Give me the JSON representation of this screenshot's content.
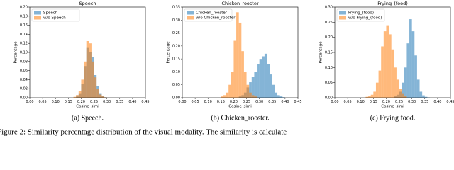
{
  "chart_data": [
    {
      "type": "histogram",
      "title": "Speech",
      "xlabel": "Cosine_simi",
      "ylabel": "Percentage",
      "caption": "(a) Speech.",
      "legend": "upper left",
      "bins": [
        0.17,
        0.18,
        0.19,
        0.2,
        0.21,
        0.22,
        0.23,
        0.24,
        0.25,
        0.26,
        0.27,
        0.28,
        0.29,
        0.3
      ],
      "series": [
        {
          "name": "Speech",
          "color": "#1f77b4",
          "values": [
            0,
            0.005,
            0.01,
            0.03,
            0.07,
            0.11,
            0.1,
            0.09,
            0.05,
            0.025,
            0.01,
            0.004,
            0.001
          ]
        },
        {
          "name": "w/o Speech",
          "color": "#ff7f0e",
          "values": [
            0.002,
            0.006,
            0.015,
            0.04,
            0.08,
            0.125,
            0.12,
            0.08,
            0.045,
            0.02,
            0.007,
            0.003,
            0.001
          ]
        }
      ],
      "xlim": [
        0,
        0.45
      ],
      "xticks": [
        {
          "value": 0,
          "label": "0.00"
        },
        {
          "value": 0.05,
          "label": "0.05"
        },
        {
          "value": 0.1,
          "label": "0.10"
        },
        {
          "value": 0.15,
          "label": "0.15"
        },
        {
          "value": 0.2,
          "label": "0.20"
        },
        {
          "value": 0.25,
          "label": "0.25"
        },
        {
          "value": 0.3,
          "label": "0.30"
        },
        {
          "value": 0.35,
          "label": "0.35"
        },
        {
          "value": 0.4,
          "label": "0.40"
        },
        {
          "value": 0.45,
          "label": "0.45"
        }
      ],
      "ylim": [
        0,
        0.2
      ],
      "yticks": [
        {
          "value": 0,
          "label": "0.00"
        },
        {
          "value": 0.02,
          "label": "0.02"
        },
        {
          "value": 0.04,
          "label": "0.04"
        },
        {
          "value": 0.06,
          "label": "0.06"
        },
        {
          "value": 0.08,
          "label": "0.08"
        },
        {
          "value": 0.1,
          "label": "0.10"
        },
        {
          "value": 0.12,
          "label": "0.12"
        },
        {
          "value": 0.14,
          "label": "0.14"
        },
        {
          "value": 0.16,
          "label": "0.16"
        },
        {
          "value": 0.18,
          "label": "0.18"
        },
        {
          "value": 0.2,
          "label": "0.20"
        }
      ]
    },
    {
      "type": "histogram",
      "title": "Chicken_rooster",
      "xlabel": "Cosine_simi",
      "ylabel": "Percentage",
      "caption": "(b) Chicken_rooster.",
      "legend": "upper left",
      "bins": [
        0.15,
        0.16,
        0.17,
        0.18,
        0.19,
        0.2,
        0.21,
        0.22,
        0.23,
        0.24,
        0.25,
        0.26,
        0.27,
        0.28,
        0.29,
        0.3,
        0.31,
        0.32,
        0.33,
        0.34,
        0.35,
        0.36,
        0.37,
        0.38,
        0.39,
        0.4
      ],
      "series": [
        {
          "name": "Chicken_rooster",
          "color": "#1f77b4",
          "values": [
            0,
            0,
            0,
            0,
            0,
            0,
            0,
            0.005,
            0.01,
            0.02,
            0.04,
            0.06,
            0.08,
            0.1,
            0.13,
            0.15,
            0.16,
            0.17,
            0.13,
            0.09,
            0.05,
            0.02,
            0.01,
            0.005,
            0.002
          ]
        },
        {
          "name": "w/o Chicken_rooster",
          "color": "#ff7f0e",
          "values": [
            0.005,
            0.01,
            0.02,
            0.05,
            0.1,
            0.22,
            0.33,
            0.29,
            0.18,
            0.1,
            0.05,
            0.02,
            0.01,
            0.005,
            0,
            0,
            0,
            0,
            0,
            0,
            0,
            0,
            0,
            0,
            0
          ]
        }
      ],
      "xlim": [
        0,
        0.45
      ],
      "xticks": [
        {
          "value": 0,
          "label": "0.00"
        },
        {
          "value": 0.05,
          "label": "0.05"
        },
        {
          "value": 0.1,
          "label": "0.10"
        },
        {
          "value": 0.15,
          "label": "0.15"
        },
        {
          "value": 0.2,
          "label": "0.20"
        },
        {
          "value": 0.25,
          "label": "0.25"
        },
        {
          "value": 0.3,
          "label": "0.30"
        },
        {
          "value": 0.35,
          "label": "0.35"
        },
        {
          "value": 0.4,
          "label": "0.40"
        },
        {
          "value": 0.45,
          "label": "0.45"
        }
      ],
      "ylim": [
        0,
        0.35
      ],
      "yticks": [
        {
          "value": 0,
          "label": "0.00"
        },
        {
          "value": 0.05,
          "label": "0.05"
        },
        {
          "value": 0.1,
          "label": "0.10"
        },
        {
          "value": 0.15,
          "label": "0.15"
        },
        {
          "value": 0.2,
          "label": "0.20"
        },
        {
          "value": 0.25,
          "label": "0.25"
        },
        {
          "value": 0.3,
          "label": "0.30"
        },
        {
          "value": 0.35,
          "label": "0.35"
        }
      ]
    },
    {
      "type": "histogram",
      "title": "Frying_(food)",
      "xlabel": "Cosine_simi",
      "ylabel": "Percentage",
      "caption": "(c) Frying food.",
      "legend": "upper left",
      "bins": [
        0.12,
        0.13,
        0.14,
        0.15,
        0.16,
        0.17,
        0.18,
        0.19,
        0.2,
        0.21,
        0.22,
        0.23,
        0.24,
        0.25,
        0.26,
        0.27,
        0.28,
        0.29,
        0.3,
        0.31,
        0.32,
        0.33,
        0.34,
        0.35,
        0.36,
        0.37
      ],
      "series": [
        {
          "name": "Frying_(food)",
          "color": "#1f77b4",
          "values": [
            0,
            0,
            0,
            0,
            0,
            0,
            0,
            0,
            0,
            0,
            0,
            0.005,
            0.01,
            0.02,
            0.05,
            0.1,
            0.18,
            0.26,
            0.22,
            0.14,
            0.06,
            0.02,
            0.008,
            0.003,
            0.001
          ]
        },
        {
          "name": "w/o Frying_(food)",
          "color": "#ff7f0e",
          "values": [
            0.003,
            0.005,
            0.01,
            0.02,
            0.05,
            0.09,
            0.17,
            0.22,
            0.24,
            0.21,
            0.16,
            0.1,
            0.06,
            0.03,
            0.015,
            0.005,
            0,
            0,
            0,
            0,
            0,
            0,
            0,
            0,
            0
          ]
        }
      ],
      "xlim": [
        0,
        0.45
      ],
      "xticks": [
        {
          "value": 0,
          "label": "0.00"
        },
        {
          "value": 0.05,
          "label": "0.05"
        },
        {
          "value": 0.1,
          "label": "0.10"
        },
        {
          "value": 0.15,
          "label": "0.15"
        },
        {
          "value": 0.2,
          "label": "0.20"
        },
        {
          "value": 0.25,
          "label": "0.25"
        },
        {
          "value": 0.3,
          "label": "0.30"
        },
        {
          "value": 0.35,
          "label": "0.35"
        },
        {
          "value": 0.4,
          "label": "0.40"
        },
        {
          "value": 0.45,
          "label": "0.45"
        }
      ],
      "ylim": [
        0,
        0.3
      ],
      "yticks": [
        {
          "value": 0,
          "label": "0.00"
        },
        {
          "value": 0.05,
          "label": "0.05"
        },
        {
          "value": 0.1,
          "label": "0.10"
        },
        {
          "value": 0.15,
          "label": "0.15"
        },
        {
          "value": 0.2,
          "label": "0.20"
        },
        {
          "value": 0.25,
          "label": "0.25"
        },
        {
          "value": 0.3,
          "label": "0.30"
        }
      ]
    }
  ],
  "figure_caption": "Figure 2: Similarity percentage distribution of the visual modality. The similarity is calculate"
}
